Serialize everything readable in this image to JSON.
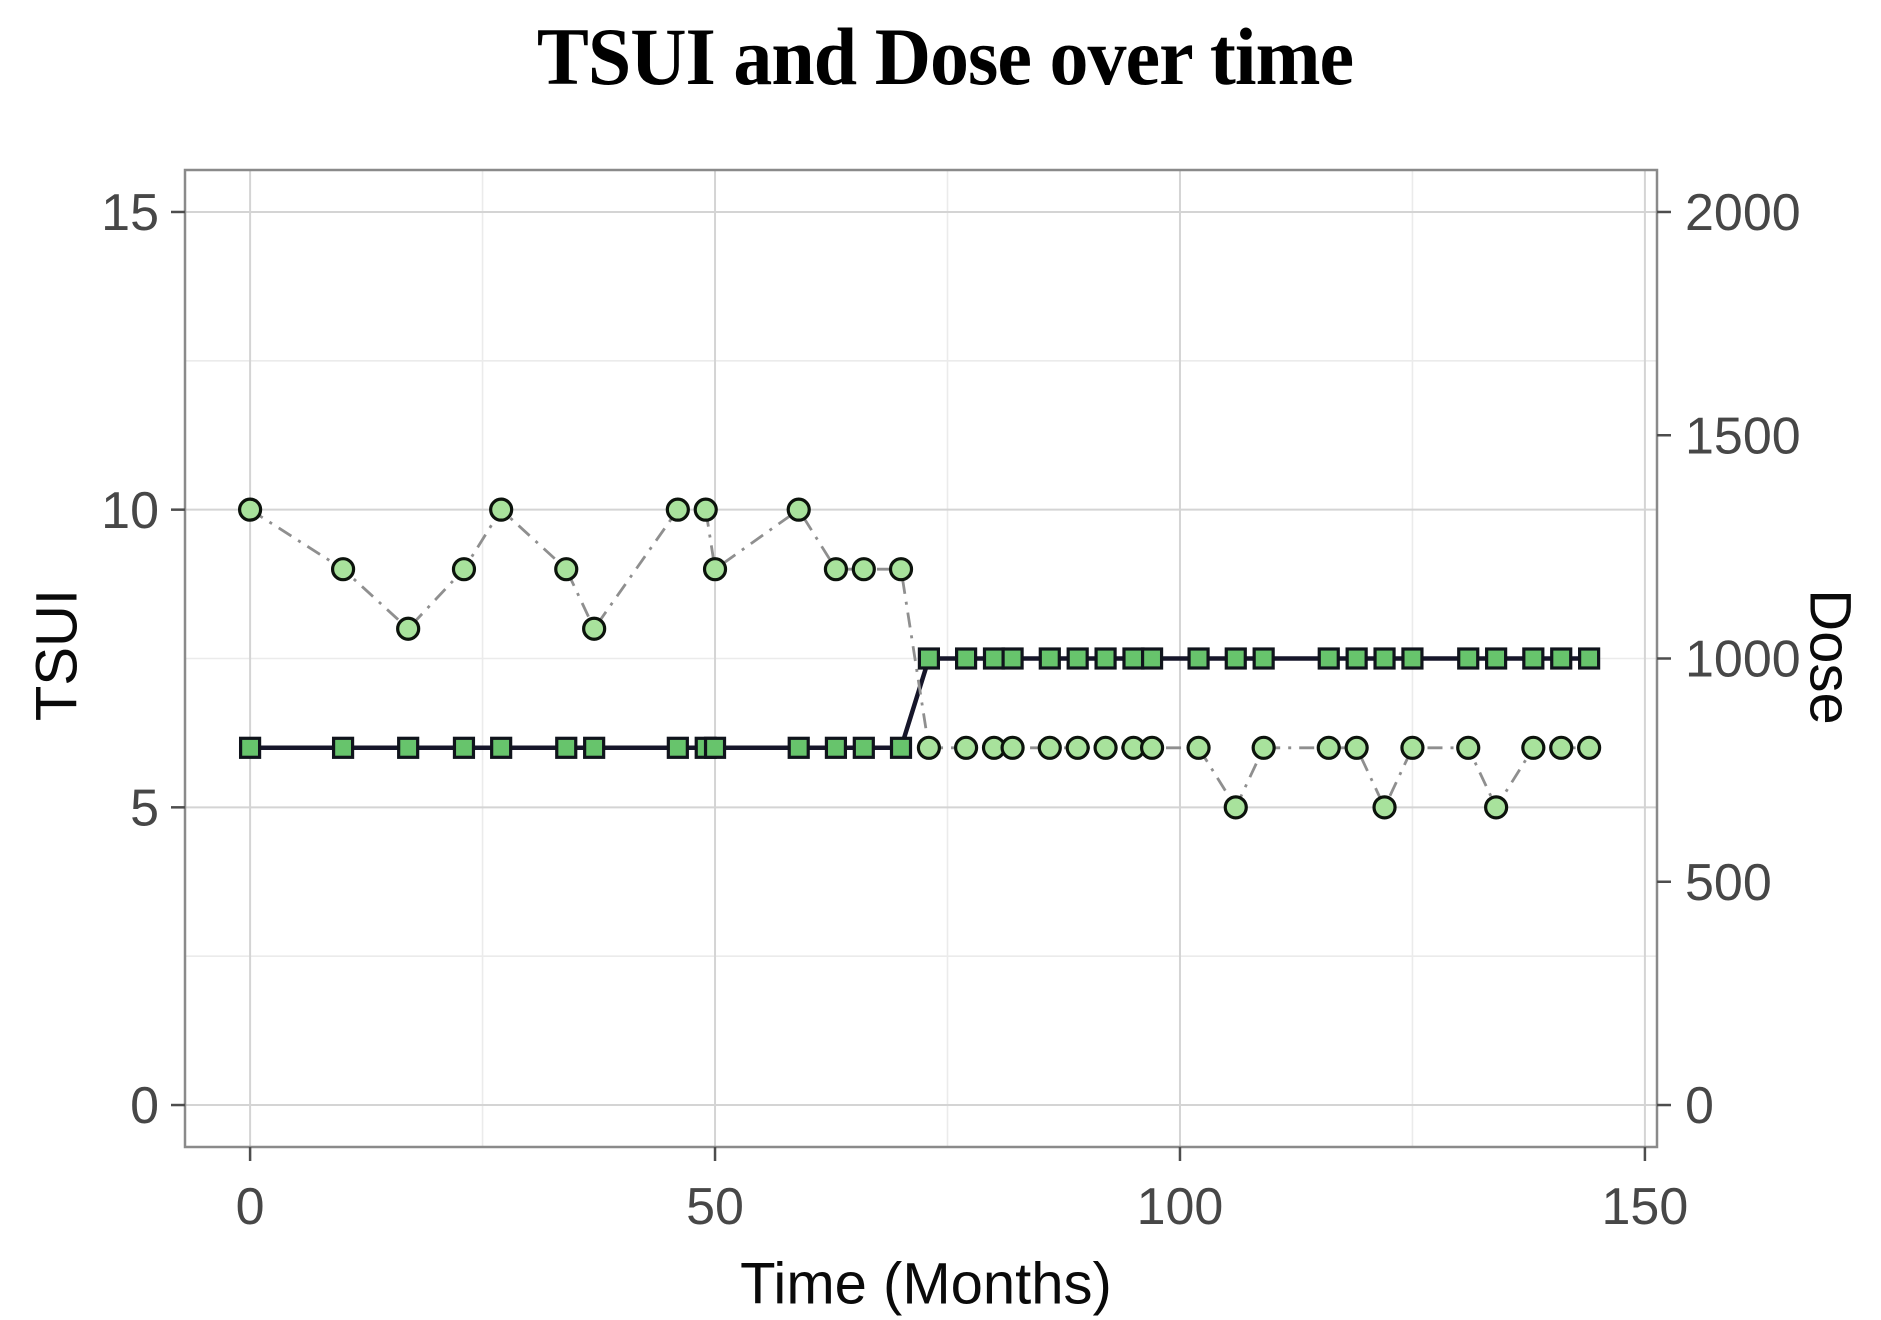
{
  "colors": {
    "background": "#ffffff",
    "grid_major": "#d4d4d4",
    "grid_minor": "#ebebeb",
    "panel_border": "#8a8a8a",
    "tick_mark": "#4d4d4d",
    "tick_label": "#474747",
    "axis_title": "#0a0a0a",
    "tsui_line": "#8f8f8f",
    "tsui_marker_fill": "#a8e29c",
    "tsui_marker_stroke": "#0c130c",
    "dose_line": "#16162a",
    "dose_marker_fill": "#67c46c",
    "dose_marker_stroke": "#10141c"
  },
  "chart_data": {
    "type": "line",
    "title": "TSUI and Dose over time",
    "xlabel": "Time (Months)",
    "ylabel_left": "TSUI",
    "ylabel_right": "Dose",
    "grid": true,
    "legend_position": "none",
    "xlim": [
      -7.0,
      151.3
    ],
    "ylim_left": [
      -0.705,
      15.705
    ],
    "ylim_right": [
      -94,
      2094
    ],
    "x_ticks": [
      0,
      50,
      100,
      150
    ],
    "x_minor_gridlines": [
      25,
      75,
      125
    ],
    "left_ticks": [
      0,
      5,
      10,
      15
    ],
    "left_minor_gridlines": [
      2.5,
      7.5,
      12.5
    ],
    "right_ticks": [
      0,
      500,
      1000,
      1500,
      2000
    ],
    "x": [
      0,
      10,
      17,
      23,
      27,
      34,
      37,
      46,
      49,
      50,
      59,
      63,
      66,
      70,
      73,
      77,
      80,
      82,
      86,
      89,
      92,
      95,
      97,
      102,
      106,
      109,
      116,
      119,
      122,
      125,
      131,
      134,
      138,
      141,
      144
    ],
    "series": [
      {
        "name": "TSUI",
        "axis": "left",
        "marker": "circle",
        "line_style": "dash-dot",
        "values": [
          10,
          9,
          8,
          9,
          10,
          9,
          8,
          10,
          10,
          9,
          10,
          9,
          9,
          9,
          6,
          6,
          6,
          6,
          6,
          6,
          6,
          6,
          6,
          6,
          5,
          6,
          6,
          6,
          5,
          6,
          6,
          5,
          6,
          6,
          6
        ]
      },
      {
        "name": "Dose",
        "axis": "right",
        "marker": "square",
        "line_style": "solid",
        "values": [
          800,
          800,
          800,
          800,
          800,
          800,
          800,
          800,
          800,
          800,
          800,
          800,
          800,
          800,
          1000,
          1000,
          1000,
          1000,
          1000,
          1000,
          1000,
          1000,
          1000,
          1000,
          1000,
          1000,
          1000,
          1000,
          1000,
          1000,
          1000,
          1000,
          1000,
          1000,
          1000
        ]
      }
    ]
  }
}
